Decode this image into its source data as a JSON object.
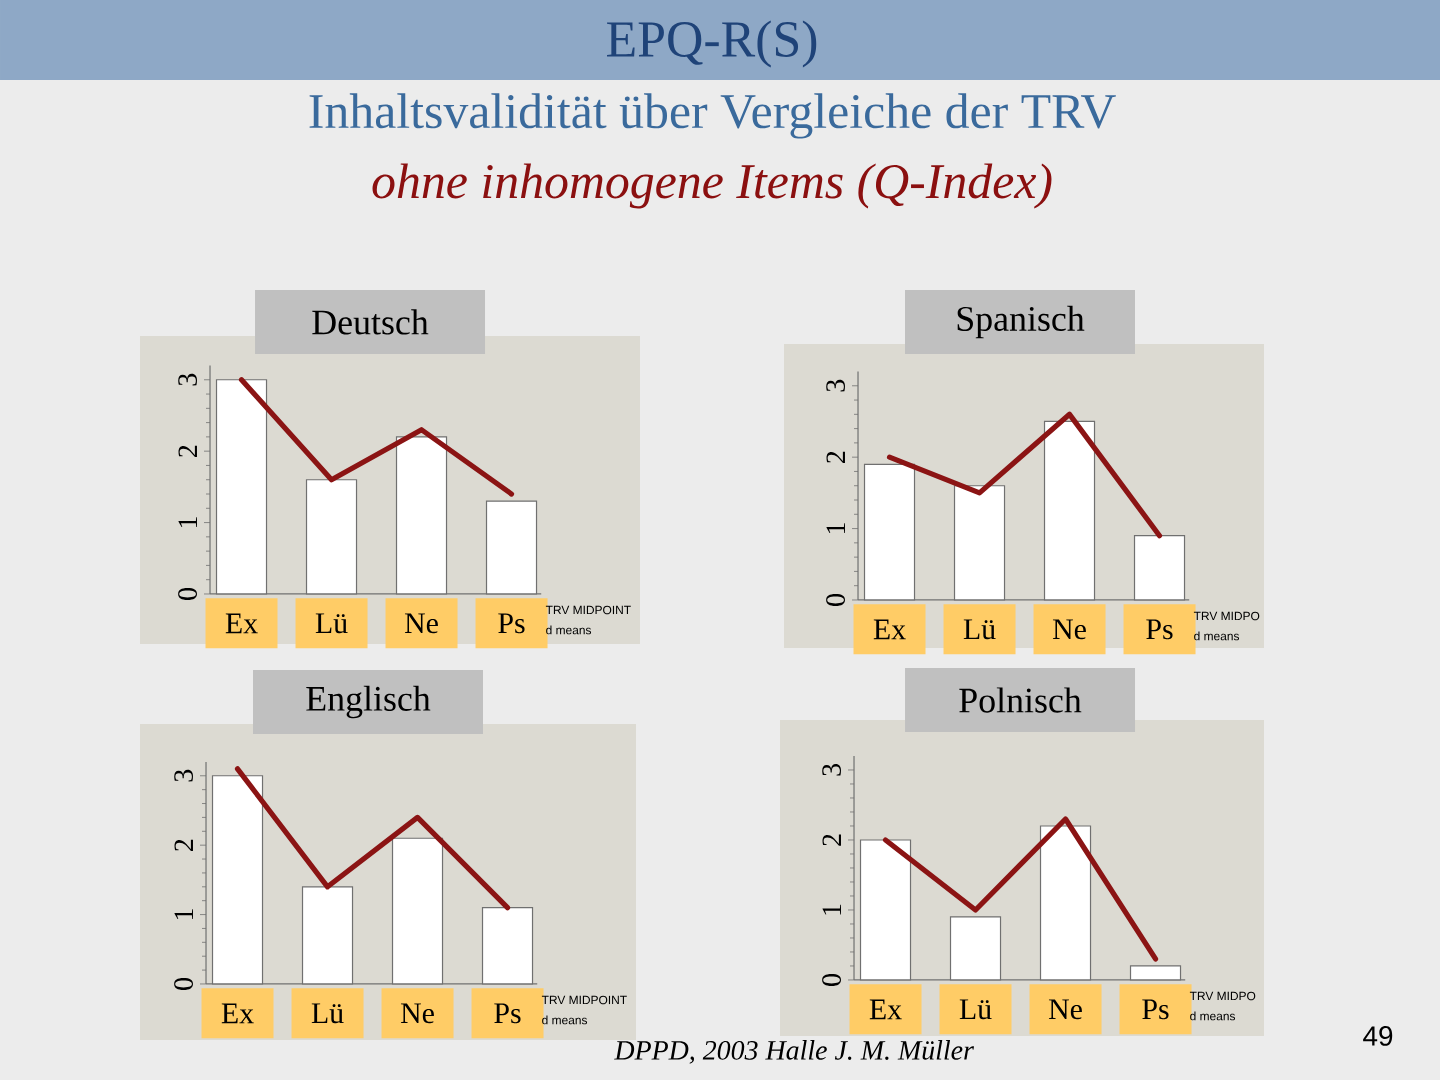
{
  "chart_data": [
    {
      "type": "bar",
      "title": "Deutsch",
      "categories": [
        "Ex",
        "Lü",
        "Ne",
        "Ps"
      ],
      "series": [
        {
          "color": "#ffffff",
          "values": [
            3.0,
            1.6,
            2.2,
            1.3
          ]
        },
        {
          "type": "line",
          "color": "#8b1414",
          "values": [
            3.0,
            1.6,
            2.3,
            1.4
          ]
        }
      ],
      "ylim": [
        0,
        3.2
      ],
      "yticks": [
        0,
        1,
        2,
        3
      ],
      "annotations": [
        "EPQ-R(S)",
        "Inhaltsvalidität über Vergleiche der TRV",
        "ohne inhomogene Items (Q-Index)",
        "TRV MIDPOINT",
        "d means"
      ]
    },
    {
      "type": "bar",
      "title": "Spanisch",
      "categories": [
        "Ex",
        "Lü",
        "Ne",
        "Ps"
      ],
      "series": [
        {
          "color": "#ffffff",
          "values": [
            1.9,
            1.6,
            2.5,
            0.9
          ]
        },
        {
          "type": "line",
          "color": "#8b1414",
          "values": [
            2.0,
            1.5,
            2.6,
            0.9
          ]
        }
      ],
      "ylim": [
        0,
        3.2
      ],
      "yticks": [
        0,
        1,
        2,
        3
      ],
      "annotations": [
        "TRV MIDPO",
        "d means"
      ]
    },
    {
      "type": "bar",
      "title": "Englisch",
      "categories": [
        "Ex",
        "Lü",
        "Ne",
        "Ps"
      ],
      "series": [
        {
          "color": "#ffffff",
          "values": [
            3.0,
            1.4,
            2.1,
            1.1
          ]
        },
        {
          "type": "line",
          "color": "#8b1414",
          "values": [
            3.1,
            1.4,
            2.4,
            1.1
          ]
        }
      ],
      "ylim": [
        0,
        3.2
      ],
      "yticks": [
        0,
        1,
        2,
        3
      ],
      "annotations": [
        "TRV MIDPOINT",
        "d means"
      ]
    },
    {
      "type": "bar",
      "title": "Polnisch",
      "categories": [
        "Ex",
        "Lü",
        "Ne",
        "Ps"
      ],
      "series": [
        {
          "color": "#ffffff",
          "values": [
            2.0,
            0.9,
            2.2,
            0.2
          ]
        },
        {
          "type": "line",
          "color": "#8b1414",
          "values": [
            2.0,
            1.0,
            2.3,
            0.3
          ]
        }
      ],
      "ylim": [
        0,
        3.2
      ],
      "yticks": [
        0,
        1,
        2,
        3
      ],
      "annotations": [
        "TRV MIDPO",
        "d means",
        "DPPD, 2003 Halle J. M. Müller",
        "49"
      ]
    }
  ]
}
